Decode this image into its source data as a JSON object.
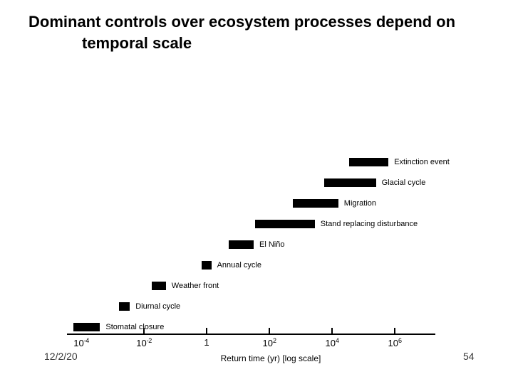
{
  "slide": {
    "title_line1": "Dominant controls over ecosystem processes depend on",
    "title_line2": "temporal scale",
    "date_text": "12/2/20",
    "page_number": "54"
  },
  "chart_data": {
    "type": "bar",
    "orientation": "horizontal-timeline",
    "title": "",
    "xlabel": "Return time (yr) [log scale]",
    "x_scale": "log10",
    "x_axis_range_log": [
      -4.45,
      7.3
    ],
    "grid": "off",
    "bar_color": "#000000",
    "background": "#ffffff",
    "x_ticks": [
      {
        "base": "10",
        "exp": "-4",
        "log": -4,
        "has_mark": false
      },
      {
        "base": "10",
        "exp": "-2",
        "log": -2,
        "has_mark": true
      },
      {
        "base": "1",
        "exp": "",
        "log": 0,
        "has_mark": true
      },
      {
        "base": "10",
        "exp": "2",
        "log": 2,
        "has_mark": true
      },
      {
        "base": "10",
        "exp": "4",
        "log": 4,
        "has_mark": true
      },
      {
        "base": "10",
        "exp": "6",
        "log": 6,
        "has_mark": true
      }
    ],
    "bars": [
      {
        "label": "Extinction event",
        "log_start": 4.55,
        "log_end": 5.8
      },
      {
        "label": "Glacial cycle",
        "log_start": 3.75,
        "log_end": 5.4
      },
      {
        "label": "Migration",
        "log_start": 2.75,
        "log_end": 4.2
      },
      {
        "label": "Stand replacing disturbance",
        "log_start": 1.55,
        "log_end": 3.45
      },
      {
        "label": "El Niño",
        "log_start": 0.7,
        "log_end": 1.5
      },
      {
        "label": "Annual cycle",
        "log_start": -0.15,
        "log_end": 0.15
      },
      {
        "label": "Weather front",
        "log_start": -1.75,
        "log_end": -1.3
      },
      {
        "label": "Diurnal cycle",
        "log_start": -2.8,
        "log_end": -2.45
      },
      {
        "label": "Stomatal closure",
        "log_start": -4.25,
        "log_end": -3.4
      }
    ]
  }
}
